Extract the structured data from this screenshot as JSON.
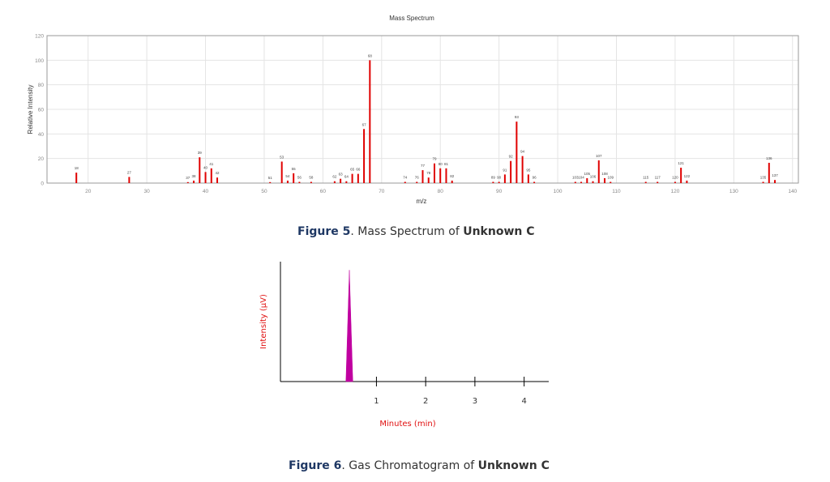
{
  "chart_data": [
    {
      "type": "bar",
      "title": "Mass Spectrum",
      "xlabel": "m/z",
      "ylabel": "Relative Intensity",
      "xlim": [
        13,
        141
      ],
      "ylim": [
        0,
        120
      ],
      "xticks": [
        20,
        30,
        40,
        50,
        60,
        70,
        80,
        90,
        100,
        110,
        120,
        130,
        140
      ],
      "yticks": [
        0,
        20,
        40,
        60,
        80,
        100,
        120
      ],
      "grid": true,
      "color": "#e00000",
      "peaks": [
        {
          "mz": 18,
          "intensity": 8.5
        },
        {
          "mz": 27,
          "intensity": 5
        },
        {
          "mz": 37,
          "intensity": 0.8
        },
        {
          "mz": 38,
          "intensity": 2
        },
        {
          "mz": 39,
          "intensity": 21
        },
        {
          "mz": 40,
          "intensity": 9
        },
        {
          "mz": 41,
          "intensity": 12
        },
        {
          "mz": 42,
          "intensity": 4.5
        },
        {
          "mz": 51,
          "intensity": 0.8
        },
        {
          "mz": 53,
          "intensity": 17.5
        },
        {
          "mz": 54,
          "intensity": 2
        },
        {
          "mz": 55,
          "intensity": 8
        },
        {
          "mz": 56,
          "intensity": 1
        },
        {
          "mz": 58,
          "intensity": 1
        },
        {
          "mz": 62,
          "intensity": 1.5
        },
        {
          "mz": 63,
          "intensity": 3.5
        },
        {
          "mz": 64,
          "intensity": 1.5
        },
        {
          "mz": 65,
          "intensity": 7.5
        },
        {
          "mz": 66,
          "intensity": 7.5
        },
        {
          "mz": 67,
          "intensity": 44
        },
        {
          "mz": 68,
          "intensity": 100
        },
        {
          "mz": 74,
          "intensity": 1
        },
        {
          "mz": 76,
          "intensity": 1
        },
        {
          "mz": 77,
          "intensity": 10.5
        },
        {
          "mz": 78,
          "intensity": 4.5
        },
        {
          "mz": 79,
          "intensity": 16
        },
        {
          "mz": 80,
          "intensity": 12
        },
        {
          "mz": 81,
          "intensity": 12
        },
        {
          "mz": 82,
          "intensity": 2
        },
        {
          "mz": 89,
          "intensity": 1
        },
        {
          "mz": 90,
          "intensity": 1
        },
        {
          "mz": 91,
          "intensity": 7
        },
        {
          "mz": 92,
          "intensity": 18
        },
        {
          "mz": 93,
          "intensity": 50
        },
        {
          "mz": 94,
          "intensity": 22
        },
        {
          "mz": 95,
          "intensity": 7
        },
        {
          "mz": 96,
          "intensity": 1
        },
        {
          "mz": 103,
          "intensity": 1
        },
        {
          "mz": 104,
          "intensity": 1
        },
        {
          "mz": 105,
          "intensity": 4
        },
        {
          "mz": 106,
          "intensity": 1.5
        },
        {
          "mz": 107,
          "intensity": 18.5
        },
        {
          "mz": 108,
          "intensity": 4
        },
        {
          "mz": 109,
          "intensity": 1
        },
        {
          "mz": 115,
          "intensity": 1
        },
        {
          "mz": 117,
          "intensity": 1
        },
        {
          "mz": 120,
          "intensity": 1
        },
        {
          "mz": 121,
          "intensity": 12.5
        },
        {
          "mz": 122,
          "intensity": 2
        },
        {
          "mz": 135,
          "intensity": 1
        },
        {
          "mz": 136,
          "intensity": 16.5
        },
        {
          "mz": 137,
          "intensity": 2.5
        }
      ]
    },
    {
      "type": "area",
      "xlabel": "Minutes (min)",
      "ylabel": "Intensity (µV)",
      "xlim": [
        -0.95,
        4.5
      ],
      "ylim": [
        0,
        1
      ],
      "xticks": [
        1,
        2,
        3,
        4
      ],
      "color": "#c000a0",
      "peak": {
        "start": 0.38,
        "apex": 0.45,
        "end": 0.52,
        "height": 0.93
      }
    }
  ],
  "captions": {
    "fig5": {
      "label": "Figure 5",
      "text": ". Mass Spectrum of ",
      "bold": "Unknown C"
    },
    "fig6": {
      "label": "Figure 6",
      "text": ". Gas Chromatogram of ",
      "bold": "Unknown C"
    }
  }
}
